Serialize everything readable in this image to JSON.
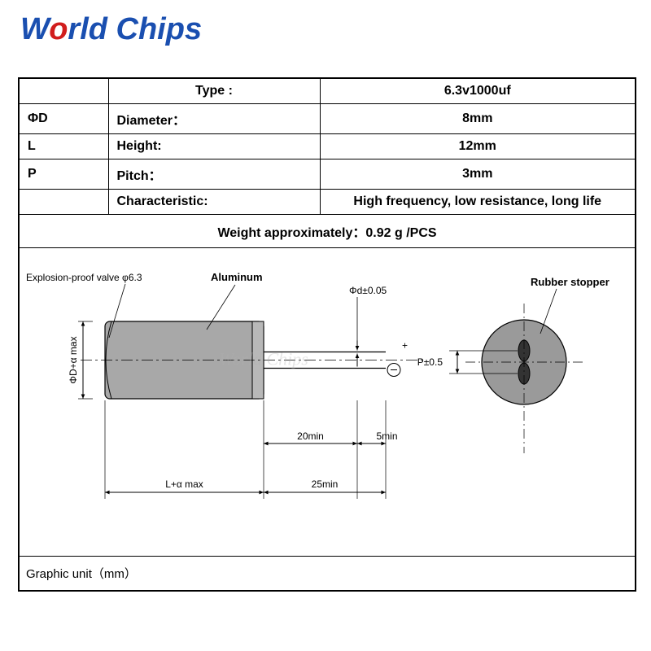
{
  "logo": {
    "part1": "W",
    "part2": "o",
    "part3": "rld Chips"
  },
  "table": {
    "type_label": "Type  :",
    "type_value": "6.3v1000uf",
    "diameter_sym": "ΦD",
    "diameter_label": "Diameter：",
    "diameter_value": "8mm",
    "height_sym": "L",
    "height_label": "Height:",
    "height_value": "12mm",
    "pitch_sym": "P",
    "pitch_label": "Pitch：",
    "pitch_value": "3mm",
    "char_label": "Characteristic:",
    "char_value": "High frequency, low resistance, long life",
    "weight": "Weight approximately：0.92 g  /PCS",
    "graphic_unit": "Graphic unit（mm）"
  },
  "diagram": {
    "explosion_label": "Explosion-proof valve  φ6.3",
    "aluminum_label": "Aluminum",
    "phi_d_label": "Φd±0.05",
    "rubber_label": "Rubber stopper",
    "p_label": "P±0.5",
    "dim_20min": "20min",
    "dim_5min": "5min",
    "dim_L": "L+α max",
    "dim_25min": "25min",
    "dim_phiD": "ΦD+α max",
    "colors": {
      "body_fill": "#a8a8a8",
      "body_stroke": "#000000",
      "end_fill": "#b8b8b8",
      "rubber_fill": "#9a9a9a",
      "line": "#000000",
      "centerline": "#000000"
    }
  }
}
